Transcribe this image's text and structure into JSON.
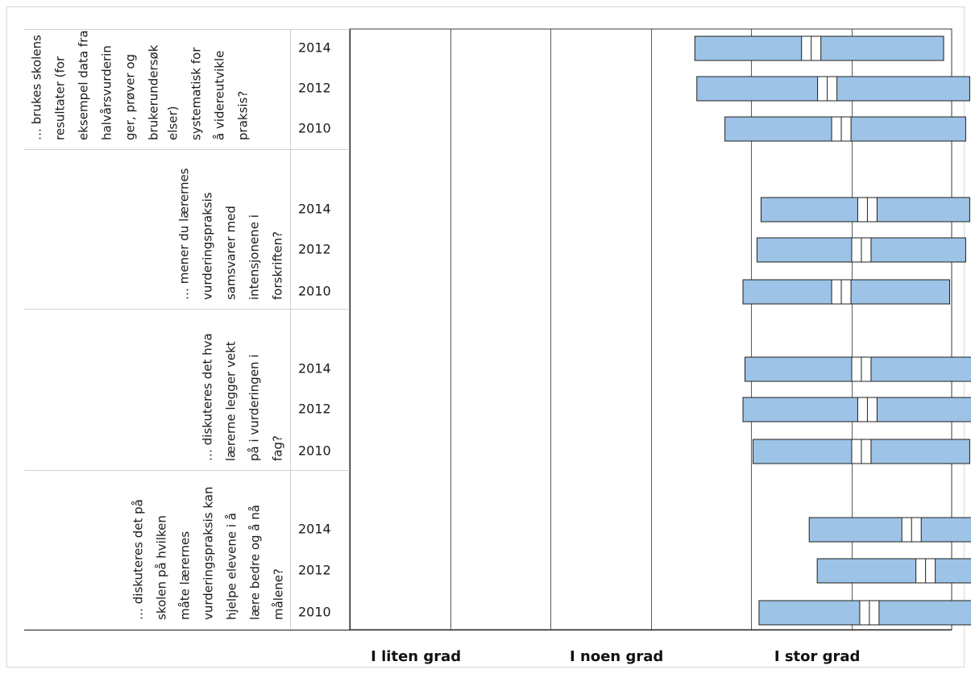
{
  "chart_data": {
    "type": "bar",
    "orientation": "horizontal-range",
    "x_tick_labels": [
      "I liten grad",
      "I noen grad",
      "I stor grad"
    ],
    "xlim": [
      1,
      4
    ],
    "bar_color": "#9dc3e6",
    "grid": "vertical",
    "groups": [
      {
        "question_lines": [
          "… brukes skolens",
          "resultater (for",
          "eksempel data fra",
          "halvårsvurderin",
          "ger, prøver og",
          "brukerundersøk",
          "elser)",
          "systematisk for",
          "å videreutvikle",
          "praksis?"
        ],
        "rows": [
          {
            "year": "2014",
            "low": 2.72,
            "high": 3.96,
            "mean": 3.3
          },
          {
            "year": "2012",
            "low": 2.73,
            "high": 4.09,
            "mean": 3.38
          },
          {
            "year": "2010",
            "low": 2.87,
            "high": 4.07,
            "mean": 3.45
          }
        ]
      },
      {
        "question_lines": [
          "… mener du lærernes",
          "vurderingspraksis",
          "samsvarer med",
          "intensjonene i",
          "forskriften?"
        ],
        "rows": [
          {
            "year": "2014",
            "low": 3.05,
            "high": 4.09,
            "mean": 3.58
          },
          {
            "year": "2012",
            "low": 3.03,
            "high": 4.07,
            "mean": 3.55
          },
          {
            "year": "2010",
            "low": 2.96,
            "high": 3.99,
            "mean": 3.45
          }
        ]
      },
      {
        "question_lines": [
          "… diskuteres det hva",
          "lærerne legger vekt",
          "på i vurderingen i",
          "fag?"
        ],
        "rows": [
          {
            "year": "2014",
            "low": 2.97,
            "high": 4.14,
            "mean": 3.55
          },
          {
            "year": "2012",
            "low": 2.96,
            "high": 4.19,
            "mean": 3.58
          },
          {
            "year": "2010",
            "low": 3.01,
            "high": 4.09,
            "mean": 3.55
          }
        ]
      },
      {
        "question_lines": [
          "… diskuteres det på",
          "skolen på hvilken",
          "måte lærernes",
          "vurderingspraksis kan",
          "hjelpe elevene i å",
          "lære bedre og å nå",
          "målene?"
        ],
        "rows": [
          {
            "year": "2014",
            "low": 3.29,
            "high": 4.28,
            "mean": 3.8
          },
          {
            "year": "2012",
            "low": 3.33,
            "high": 4.36,
            "mean": 3.87
          },
          {
            "year": "2010",
            "low": 3.04,
            "high": 4.16,
            "mean": 3.59
          }
        ]
      }
    ]
  }
}
